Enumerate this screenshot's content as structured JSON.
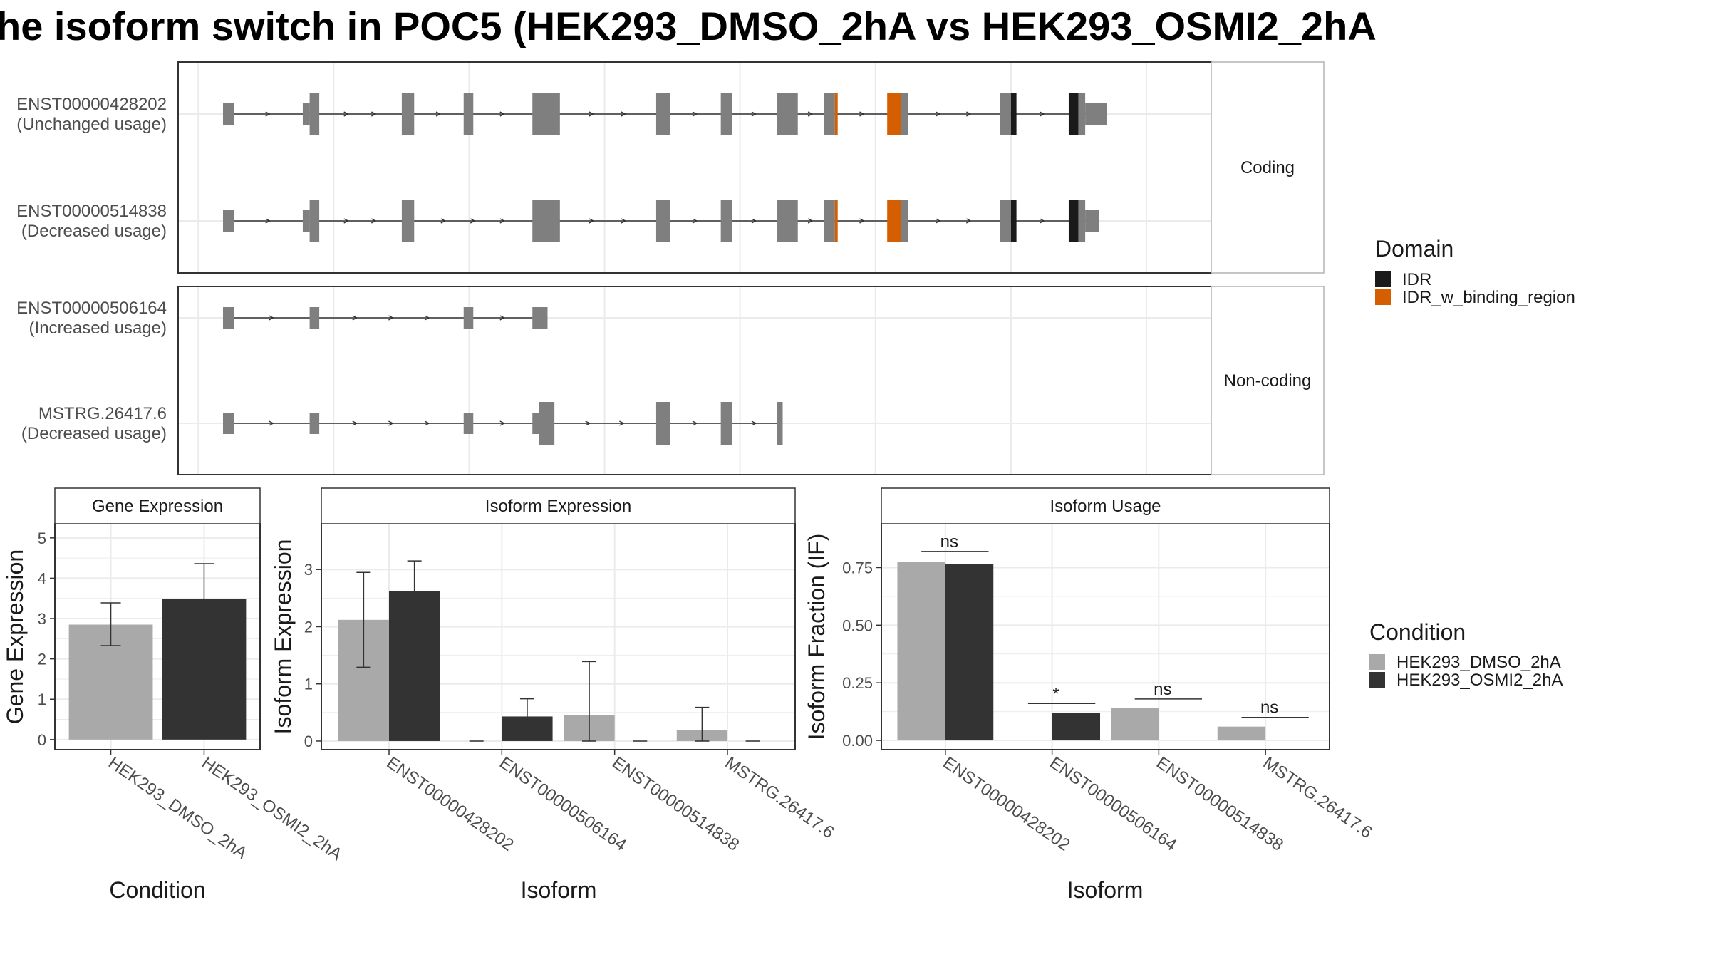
{
  "title": "he isoform switch in POC5 (HEK293_DMSO_2hA vs HEK293_OSMI2_2hA",
  "colors": {
    "exon": "#7f7f7f",
    "idr": "#1a1a1a",
    "idr_binding": "#d55e00",
    "dmso": "#a9a9a9",
    "osmi2": "#333333",
    "grid": "#ebebeb",
    "strip_bg": "#f2f2f2"
  },
  "transcript_panels": [
    {
      "label": "Coding",
      "rows": [
        0,
        1
      ]
    },
    {
      "label": "Non-coding",
      "rows": [
        2,
        3
      ]
    }
  ],
  "transcripts": [
    {
      "id": "ENST00000428202",
      "usage": "(Unchanged usage)",
      "exons": [
        [
          0.0,
          0.08,
          "s"
        ],
        [
          0.58,
          0.63,
          "s"
        ],
        [
          0.63,
          0.7,
          "t"
        ],
        [
          1.3,
          1.39,
          "t"
        ],
        [
          1.75,
          1.82,
          "t"
        ],
        [
          2.25,
          2.45,
          "t"
        ],
        [
          3.15,
          3.25,
          "t"
        ],
        [
          3.62,
          3.7,
          "t"
        ],
        [
          4.03,
          4.18,
          "t"
        ],
        [
          4.37,
          4.45,
          "t"
        ],
        [
          4.45,
          4.47,
          "to"
        ],
        [
          4.83,
          4.93,
          "to"
        ],
        [
          4.93,
          4.98,
          "t"
        ],
        [
          5.65,
          5.73,
          "t"
        ],
        [
          5.73,
          5.77,
          "ti"
        ],
        [
          6.15,
          6.22,
          "ti"
        ],
        [
          6.22,
          6.27,
          "t"
        ],
        [
          6.27,
          6.43,
          "s"
        ]
      ]
    },
    {
      "id": "ENST00000514838",
      "usage": "(Decreased usage)",
      "exons": [
        [
          0.0,
          0.08,
          "s"
        ],
        [
          0.58,
          0.63,
          "s"
        ],
        [
          0.63,
          0.7,
          "t"
        ],
        [
          1.3,
          1.39,
          "t"
        ],
        [
          2.25,
          2.45,
          "t"
        ],
        [
          3.15,
          3.25,
          "t"
        ],
        [
          3.62,
          3.7,
          "t"
        ],
        [
          4.03,
          4.18,
          "t"
        ],
        [
          4.37,
          4.45,
          "t"
        ],
        [
          4.45,
          4.47,
          "to"
        ],
        [
          4.83,
          4.93,
          "to"
        ],
        [
          4.93,
          4.98,
          "t"
        ],
        [
          5.65,
          5.73,
          "t"
        ],
        [
          5.73,
          5.77,
          "ti"
        ],
        [
          6.15,
          6.22,
          "ti"
        ],
        [
          6.22,
          6.27,
          "t"
        ],
        [
          6.27,
          6.37,
          "s"
        ]
      ]
    },
    {
      "id": "ENST00000506164",
      "usage": "(Increased usage)",
      "exons": [
        [
          0.0,
          0.08,
          "s"
        ],
        [
          0.63,
          0.7,
          "s"
        ],
        [
          1.75,
          1.82,
          "s"
        ],
        [
          2.25,
          2.36,
          "s"
        ]
      ]
    },
    {
      "id": "MSTRG.26417.6",
      "usage": "(Decreased usage)",
      "exons": [
        [
          0.0,
          0.08,
          "s"
        ],
        [
          0.63,
          0.7,
          "s"
        ],
        [
          1.75,
          1.82,
          "s"
        ],
        [
          2.25,
          2.3,
          "s"
        ],
        [
          2.3,
          2.41,
          "t"
        ],
        [
          3.15,
          3.25,
          "t"
        ],
        [
          3.62,
          3.7,
          "t"
        ],
        [
          4.03,
          4.07,
          "t"
        ]
      ]
    }
  ],
  "domain_legend": {
    "title": "Domain",
    "items": [
      {
        "label": "IDR",
        "color": "#1a1a1a"
      },
      {
        "label": "IDR_w_binding_region",
        "color": "#d55e00"
      }
    ]
  },
  "condition_legend": {
    "title": "Condition",
    "items": [
      {
        "label": "HEK293_DMSO_2hA",
        "color": "#a9a9a9"
      },
      {
        "label": "HEK293_OSMI2_2hA",
        "color": "#333333"
      }
    ]
  },
  "chart_data": [
    {
      "type": "bar",
      "title": "Gene Expression",
      "xlabel": "Condition",
      "ylabel": "Gene Expression",
      "categories": [
        "HEK293_DMSO_2hA",
        "HEK293_OSMI2_2hA"
      ],
      "values": [
        2.85,
        3.48
      ],
      "err_low": [
        2.33,
        2.61
      ],
      "err_high": [
        3.39,
        4.36
      ],
      "ylim": [
        -0.25,
        5.35
      ],
      "yticks": [
        0,
        1,
        2,
        3,
        4,
        5
      ],
      "ytick_labels": [
        "0",
        "1",
        "2",
        "3",
        "4",
        "5"
      ]
    },
    {
      "type": "bar",
      "title": "Isoform Expression",
      "xlabel": "Isoform",
      "ylabel": "Isoform Expression",
      "categories": [
        "ENST00000428202",
        "ENST00000506164",
        "ENST00000514838",
        "MSTRG.26417.6"
      ],
      "series": [
        {
          "name": "HEK293_DMSO_2hA",
          "values": [
            2.12,
            0.0,
            0.46,
            0.19
          ],
          "err_low": [
            1.29,
            0.0,
            0.0,
            0.0
          ],
          "err_high": [
            2.95,
            0.0,
            1.39,
            0.59
          ]
        },
        {
          "name": "HEK293_OSMI2_2hA",
          "values": [
            2.62,
            0.43,
            0.0,
            0.0
          ],
          "err_low": [
            2.12,
            0.12,
            0.0,
            0.0
          ],
          "err_high": [
            3.15,
            0.74,
            0.0,
            0.0
          ]
        }
      ],
      "ylim": [
        -0.15,
        3.8
      ],
      "yticks": [
        0,
        1,
        2,
        3
      ],
      "ytick_labels": [
        "0",
        "1",
        "2",
        "3"
      ]
    },
    {
      "type": "bar",
      "title": "Isoform Usage",
      "xlabel": "Isoform",
      "ylabel": "Isoform Fraction (IF)",
      "categories": [
        "ENST00000428202",
        "ENST00000506164",
        "ENST00000514838",
        "MSTRG.26417.6"
      ],
      "series": [
        {
          "name": "HEK293_DMSO_2hA",
          "values": [
            0.775,
            0.0,
            0.14,
            0.06
          ]
        },
        {
          "name": "HEK293_OSMI2_2hA",
          "values": [
            0.765,
            0.12,
            0.0,
            0.0
          ]
        }
      ],
      "significance": [
        {
          "label": "ns",
          "y": 0.82
        },
        {
          "label": "*",
          "y": 0.16
        },
        {
          "label": "ns",
          "y": 0.18
        },
        {
          "label": "ns",
          "y": 0.1
        }
      ],
      "ylim": [
        -0.04,
        0.94
      ],
      "yticks": [
        0.0,
        0.25,
        0.5,
        0.75
      ],
      "ytick_labels": [
        "0.00",
        "0.25",
        "0.50",
        "0.75"
      ]
    }
  ]
}
